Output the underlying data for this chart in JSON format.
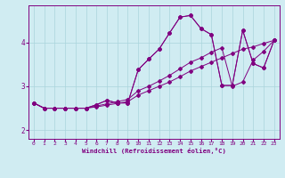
{
  "background_color": "#d0ecf2",
  "line_color": "#800080",
  "grid_color": "#aad4dc",
  "xlabel": "Windchill (Refroidissement éolien,°C)",
  "xlim": [
    -0.5,
    23.5
  ],
  "ylim": [
    1.8,
    4.85
  ],
  "yticks": [
    2,
    3,
    4
  ],
  "xticks": [
    0,
    1,
    2,
    3,
    4,
    5,
    6,
    7,
    8,
    9,
    10,
    11,
    12,
    13,
    14,
    15,
    16,
    17,
    18,
    19,
    20,
    21,
    22,
    23
  ],
  "line1_x": [
    0,
    1,
    2,
    3,
    4,
    5,
    6,
    7,
    8,
    9,
    10,
    11,
    12,
    13,
    14,
    15,
    16,
    17,
    18,
    19,
    20,
    21,
    22,
    23
  ],
  "line1_y": [
    2.62,
    2.5,
    2.5,
    2.5,
    2.5,
    2.5,
    2.53,
    2.57,
    2.61,
    2.65,
    2.8,
    2.9,
    3.0,
    3.1,
    3.22,
    3.35,
    3.45,
    3.55,
    3.65,
    3.75,
    3.85,
    3.9,
    3.98,
    4.05
  ],
  "line2_x": [
    0,
    1,
    2,
    3,
    4,
    5,
    6,
    7,
    8,
    9,
    10,
    11,
    12,
    13,
    14,
    15,
    16,
    17,
    18,
    19,
    20,
    21,
    22,
    23
  ],
  "line2_y": [
    2.62,
    2.5,
    2.5,
    2.5,
    2.5,
    2.5,
    2.55,
    2.6,
    2.65,
    2.7,
    2.9,
    3.0,
    3.12,
    3.25,
    3.4,
    3.55,
    3.65,
    3.78,
    3.88,
    3.0,
    3.1,
    3.6,
    3.8,
    4.05
  ],
  "line3_x": [
    0,
    1,
    2,
    3,
    4,
    5,
    6,
    7,
    8,
    9,
    10,
    11,
    12,
    13,
    14,
    15,
    16,
    17,
    18,
    19,
    20,
    21,
    22,
    23
  ],
  "line3_y": [
    2.62,
    2.5,
    2.5,
    2.5,
    2.5,
    2.5,
    2.58,
    2.68,
    2.62,
    2.62,
    3.38,
    3.62,
    3.85,
    4.22,
    4.58,
    4.62,
    4.32,
    4.18,
    3.02,
    3.02,
    4.28,
    3.52,
    3.42,
    4.05
  ],
  "line4_x": [
    0,
    1,
    2,
    3,
    4,
    5,
    6,
    7,
    8,
    9,
    10,
    11,
    12,
    13,
    14,
    15,
    16,
    17,
    18,
    19,
    20,
    21,
    22,
    23
  ],
  "line4_y": [
    2.62,
    2.5,
    2.5,
    2.5,
    2.5,
    2.5,
    2.58,
    2.68,
    2.62,
    2.62,
    3.38,
    3.62,
    3.85,
    4.22,
    4.58,
    4.62,
    4.32,
    4.18,
    3.02,
    3.02,
    4.28,
    3.52,
    3.42,
    4.05
  ]
}
